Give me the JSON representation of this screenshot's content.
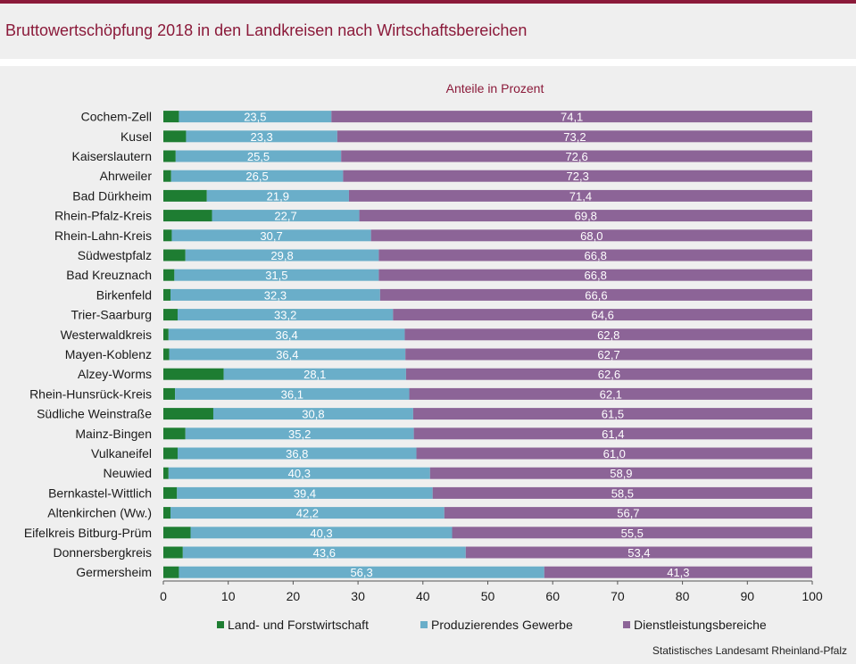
{
  "header": {
    "title": "Bruttowertschöpfung 2018 in den Landkreisen nach Wirtschaftsbereichen"
  },
  "source": "Statistisches Landesamt Rheinland-Pfalz",
  "colors": {
    "accent": "#8b1a3a",
    "agriculture": "#1e7d32",
    "industry": "#6aaec9",
    "services": "#8c6497"
  },
  "chart_data": {
    "type": "bar",
    "orientation": "horizontal",
    "stacked": true,
    "subtitle": "Anteile in Prozent",
    "xlim": [
      0,
      100
    ],
    "xticks": [
      "0",
      "10",
      "20",
      "30",
      "40",
      "50",
      "60",
      "70",
      "80",
      "90",
      "100"
    ],
    "categories": [
      "Cochem-Zell",
      "Kusel",
      "Kaiserslautern",
      "Ahrweiler",
      "Bad Dürkheim",
      "Rhein-Pfalz-Kreis",
      "Rhein-Lahn-Kreis",
      "Südwestpfalz",
      "Bad Kreuznach",
      "Birkenfeld",
      "Trier-Saarburg",
      "Westerwaldkreis",
      "Mayen-Koblenz",
      "Alzey-Worms",
      "Rhein-Hunsrück-Kreis",
      "Südliche Weinstraße",
      "Mainz-Bingen",
      "Vulkaneifel",
      "Neuwied",
      "Bernkastel-Wittlich",
      "Altenkirchen (Ww.)",
      "Eifelkreis Bitburg-Prüm",
      "Donnersbergkreis",
      "Germersheim"
    ],
    "series": [
      {
        "name": "Land- und Forstwirtschaft",
        "labels": [
          "",
          "",
          "",
          "",
          "",
          "",
          "",
          "",
          "",
          "",
          "",
          "",
          "",
          "",
          "",
          "",
          "",
          "",
          "",
          "",
          "",
          "",
          "",
          ""
        ],
        "values": [
          2.4,
          3.5,
          1.9,
          1.2,
          6.7,
          7.5,
          1.3,
          3.4,
          1.7,
          1.1,
          2.2,
          0.8,
          0.9,
          9.3,
          1.8,
          7.7,
          3.4,
          2.2,
          0.8,
          2.1,
          1.1,
          4.2,
          3.0,
          2.4
        ]
      },
      {
        "name": "Produzierendes Gewerbe",
        "labels": [
          "23,5",
          "23,3",
          "25,5",
          "26,5",
          "21,9",
          "22,7",
          "30,7",
          "29,8",
          "31,5",
          "32,3",
          "33,2",
          "36,4",
          "36,4",
          "28,1",
          "36,1",
          "30,8",
          "35,2",
          "36,8",
          "40,3",
          "39,4",
          "42,2",
          "40,3",
          "43,6",
          "56,3"
        ],
        "values": [
          23.5,
          23.3,
          25.5,
          26.5,
          21.9,
          22.7,
          30.7,
          29.8,
          31.5,
          32.3,
          33.2,
          36.4,
          36.4,
          28.1,
          36.1,
          30.8,
          35.2,
          36.8,
          40.3,
          39.4,
          42.2,
          40.3,
          43.6,
          56.3
        ]
      },
      {
        "name": "Dienstleistungsbereiche",
        "labels": [
          "74,1",
          "73,2",
          "72,6",
          "72,3",
          "71,4",
          "69,8",
          "68,0",
          "66,8",
          "66,8",
          "66,6",
          "64,6",
          "62,8",
          "62,7",
          "62,6",
          "62,1",
          "61,5",
          "61,4",
          "61,0",
          "58,9",
          "58,5",
          "56,7",
          "55,5",
          "53,4",
          "41,3"
        ],
        "values": [
          74.1,
          73.2,
          72.6,
          72.3,
          71.4,
          69.8,
          68.0,
          66.8,
          66.8,
          66.6,
          64.6,
          62.8,
          62.7,
          62.6,
          62.1,
          61.5,
          61.4,
          61.0,
          58.9,
          58.5,
          56.7,
          55.5,
          53.4,
          41.3
        ]
      }
    ],
    "legend_position": "bottom"
  }
}
